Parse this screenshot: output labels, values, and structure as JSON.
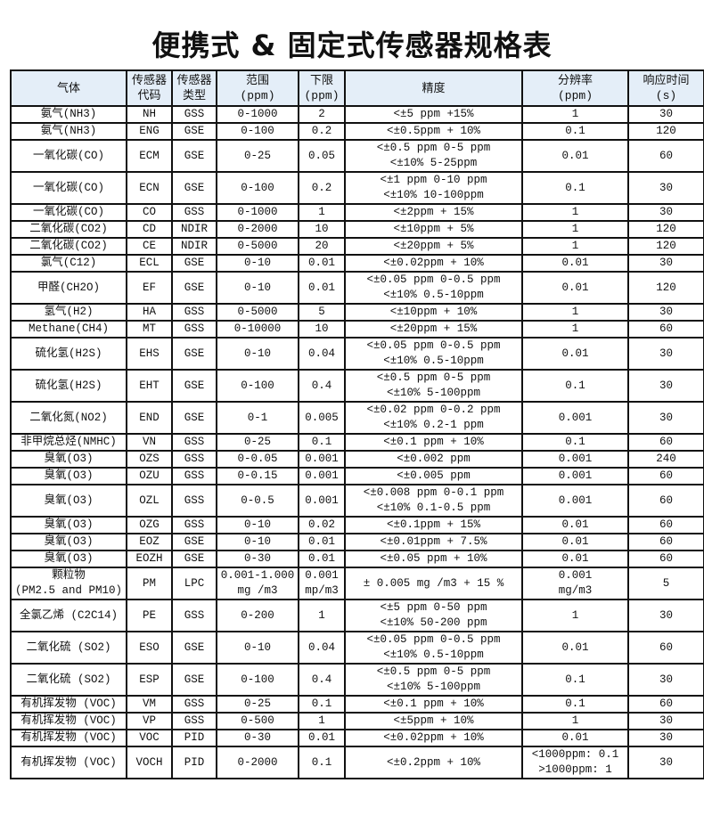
{
  "title": "便携式 & 固定式传感器规格表",
  "header_color": "#e4eef8",
  "columns": [
    "气体",
    "传感器\n代码",
    "传感器\n类型",
    "范围\n(ppm)",
    "下限\n(ppm)",
    "精度",
    "分辨率\n(ppm)",
    "响应时间\n(s)"
  ],
  "rows": [
    [
      "氨气(NH3)",
      "NH",
      "GSS",
      "0-1000",
      "2",
      "<±5 ppm +15%",
      "1",
      "30"
    ],
    [
      "氨气(NH3)",
      "ENG",
      "GSE",
      "0-100",
      "0.2",
      "<±0.5ppm + 10%",
      "0.1",
      "120"
    ],
    [
      "一氧化碳(CO)",
      "ECM",
      "GSE",
      "0-25",
      "0.05",
      "<±0.5 ppm 0-5 ppm\n<±10% 5-25ppm",
      "0.01",
      "60"
    ],
    [
      "一氧化碳(CO)",
      "ECN",
      "GSE",
      "0-100",
      "0.2",
      "<±1 ppm 0-10 ppm\n<±10% 10-100ppm",
      "0.1",
      "30"
    ],
    [
      "一氧化碳(CO)",
      "CO",
      "GSS",
      "0-1000",
      "1",
      "<±2ppm + 15%",
      "1",
      "30"
    ],
    [
      "二氧化碳(CO2)",
      "CD",
      "NDIR",
      "0-2000",
      "10",
      "<±10ppm + 5%",
      "1",
      "120"
    ],
    [
      "二氧化碳(CO2)",
      "CE",
      "NDIR",
      "0-5000",
      "20",
      "<±20ppm + 5%",
      "1",
      "120"
    ],
    [
      "氯气(C12)",
      "ECL",
      "GSE",
      "0-10",
      "0.01",
      "<±0.02ppm + 10%",
      "0.01",
      "30"
    ],
    [
      "甲醛(CH2O)",
      "EF",
      "GSE",
      "0-10",
      "0.01",
      "<±0.05 ppm 0-0.5 ppm\n<±10% 0.5-10ppm",
      "0.01",
      "120"
    ],
    [
      "氢气(H2)",
      "HA",
      "GSS",
      "0-5000",
      "5",
      "<±10ppm + 10%",
      "1",
      "30"
    ],
    [
      "Methane(CH4)",
      "MT",
      "GSS",
      "0-10000",
      "10",
      "<±20ppm + 15%",
      "1",
      "60"
    ],
    [
      "硫化氢(H2S)",
      "EHS",
      "GSE",
      "0-10",
      "0.04",
      "<±0.05 ppm 0-0.5 ppm\n<±10% 0.5-10ppm",
      "0.01",
      "30"
    ],
    [
      "硫化氢(H2S)",
      "EHT",
      "GSE",
      "0-100",
      "0.4",
      "<±0.5 ppm 0-5 ppm\n<±10% 5-100ppm",
      "0.1",
      "30"
    ],
    [
      "二氧化氮(NO2)",
      "END",
      "GSE",
      "0-1",
      "0.005",
      "<±0.02 ppm 0-0.2 ppm\n<±10% 0.2-1 ppm",
      "0.001",
      "30"
    ],
    [
      "非甲烷总烃(NMHC)",
      "VN",
      "GSS",
      "0-25",
      "0.1",
      "<±0.1 ppm + 10%",
      "0.1",
      "60"
    ],
    [
      "臭氧(O3)",
      "OZS",
      "GSS",
      "0-0.05",
      "0.001",
      "<±0.002 ppm",
      "0.001",
      "240"
    ],
    [
      "臭氧(O3)",
      "OZU",
      "GSS",
      "0-0.15",
      "0.001",
      "<±0.005 ppm",
      "0.001",
      "60"
    ],
    [
      "臭氧(O3)",
      "OZL",
      "GSS",
      "0-0.5",
      "0.001",
      "<±0.008 ppm 0-0.1 ppm\n<±10% 0.1-0.5 ppm",
      "0.001",
      "60"
    ],
    [
      "臭氧(O3)",
      "OZG",
      "GSS",
      "0-10",
      "0.02",
      "<±0.1ppm + 15%",
      "0.01",
      "60"
    ],
    [
      "臭氧(O3)",
      "EOZ",
      "GSE",
      "0-10",
      "0.01",
      "<±0.01ppm + 7.5%",
      "0.01",
      "60"
    ],
    [
      "臭氧(O3)",
      "EOZH",
      "GSE",
      "0-30",
      "0.01",
      "<±0.05 ppm + 10%",
      "0.01",
      "60"
    ],
    [
      "颗粒物\n(PM2.5 and PM10)",
      "PM",
      "LPC",
      "0.001-1.000\nmg /m3",
      "0.001\nmp/m3",
      "± 0.005 mg /m3 + 15 %",
      "0.001\nmg/m3",
      "5"
    ],
    [
      "全氯乙烯 (C2C14)",
      "PE",
      "GSS",
      "0-200",
      "1",
      "<±5 ppm 0-50 ppm\n<±10% 50-200 ppm",
      "1",
      "30"
    ],
    [
      "二氧化硫 (SO2)",
      "ESO",
      "GSE",
      "0-10",
      "0.04",
      "<±0.05 ppm 0-0.5 ppm\n<±10% 0.5-10ppm",
      "0.01",
      "60"
    ],
    [
      "二氧化硫 (SO2)",
      "ESP",
      "GSE",
      "0-100",
      "0.4",
      "<±0.5 ppm 0-5 ppm\n<±10% 5-100ppm",
      "0.1",
      "30"
    ],
    [
      "有机挥发物 (VOC)",
      "VM",
      "GSS",
      "0-25",
      "0.1",
      "<±0.1 ppm + 10%",
      "0.1",
      "60"
    ],
    [
      "有机挥发物 (VOC)",
      "VP",
      "GSS",
      "0-500",
      "1",
      "<±5ppm + 10%",
      "1",
      "30"
    ],
    [
      "有机挥发物 (VOC)",
      "VOC",
      "PID",
      "0-30",
      "0.01",
      "<±0.02ppm + 10%",
      "0.01",
      "30"
    ],
    [
      "有机挥发物 (VOC)",
      "VOCH",
      "PID",
      "0-2000",
      "0.1",
      "<±0.2ppm + 10%",
      "<1000ppm: 0.1\n>1000ppm: 1",
      "30"
    ]
  ]
}
